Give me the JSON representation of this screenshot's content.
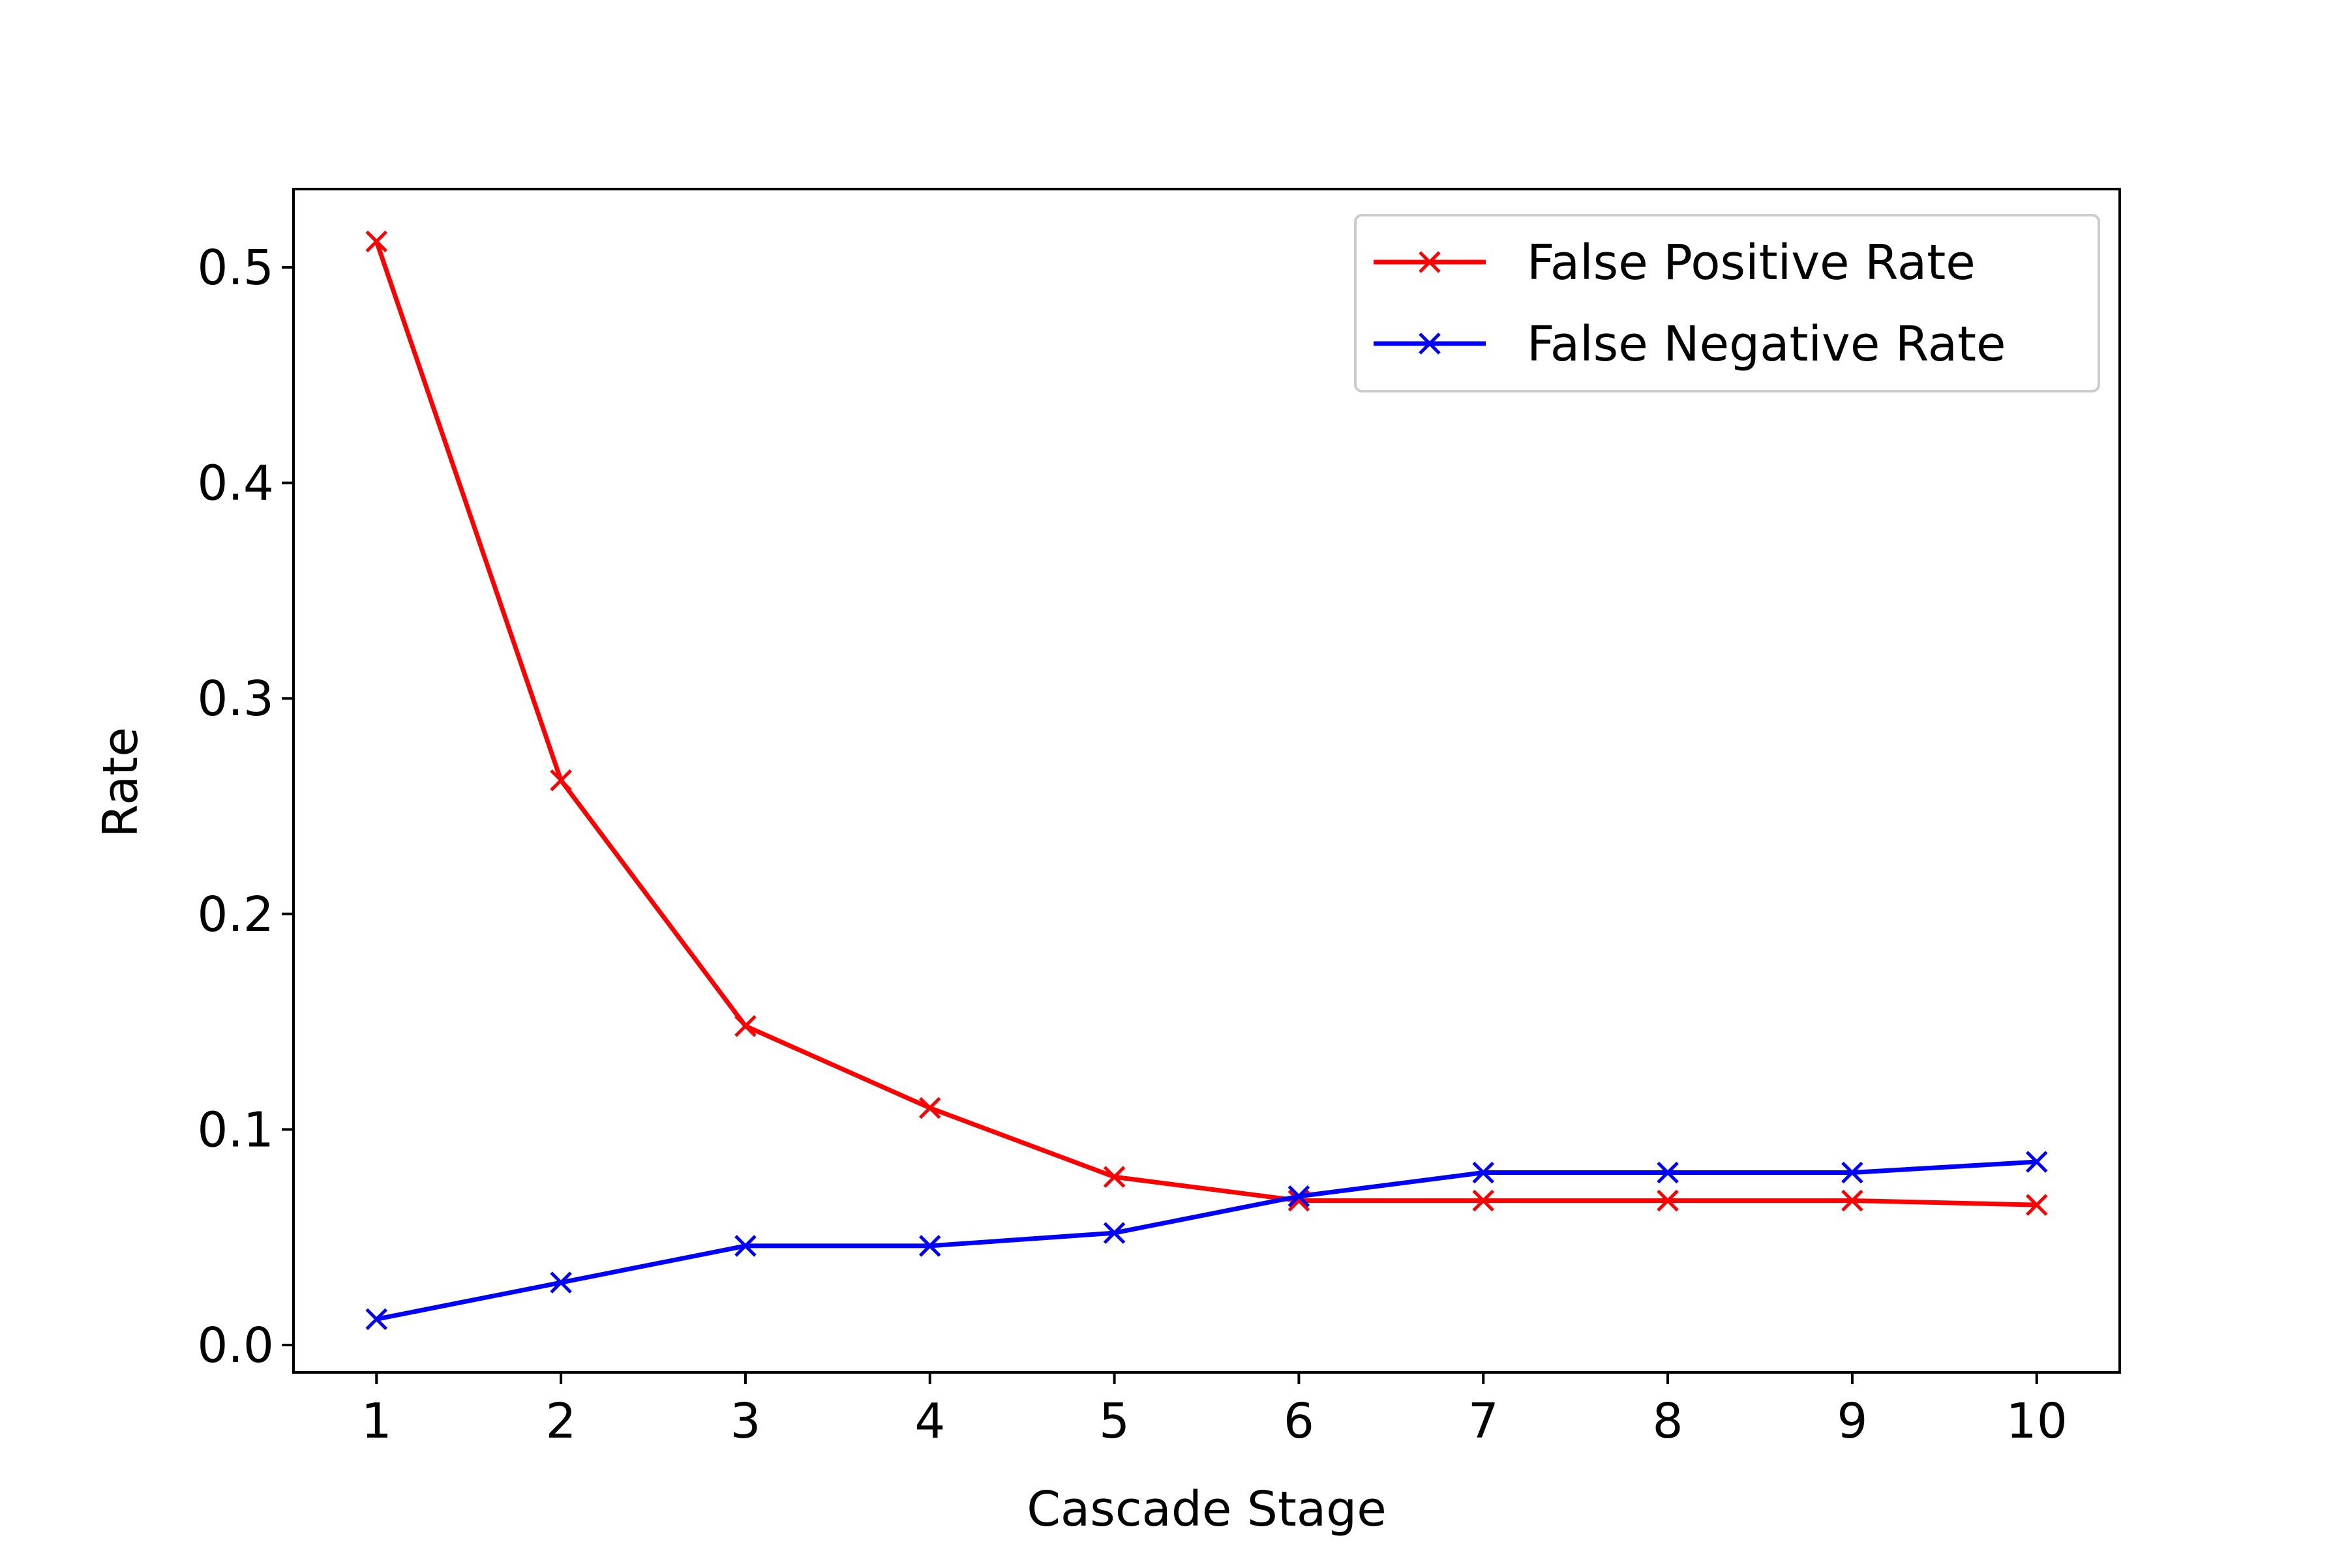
{
  "chart_data": {
    "type": "line",
    "title": "",
    "xlabel": "Cascade Stage",
    "ylabel": "Rate",
    "x": [
      1,
      2,
      3,
      4,
      5,
      6,
      7,
      8,
      9,
      10
    ],
    "xticks": [
      "1",
      "2",
      "3",
      "4",
      "5",
      "6",
      "7",
      "8",
      "9",
      "10"
    ],
    "xlim": [
      0.55,
      10.45
    ],
    "yticks": [
      "0.0",
      "0.1",
      "0.2",
      "0.3",
      "0.4",
      "0.5"
    ],
    "ylim": [
      -0.0127,
      0.5363
    ],
    "grid": false,
    "legend_position": "upper right",
    "series": [
      {
        "name": "False Positive Rate",
        "color": "#ff0000",
        "marker": "x",
        "values": [
          0.512,
          0.262,
          0.148,
          0.11,
          0.078,
          0.067,
          0.067,
          0.067,
          0.067,
          0.065
        ]
      },
      {
        "name": "False Negative Rate",
        "color": "#0000ff",
        "marker": "x",
        "values": [
          0.012,
          0.029,
          0.046,
          0.046,
          0.052,
          0.069,
          0.08,
          0.08,
          0.08,
          0.085
        ]
      }
    ]
  }
}
